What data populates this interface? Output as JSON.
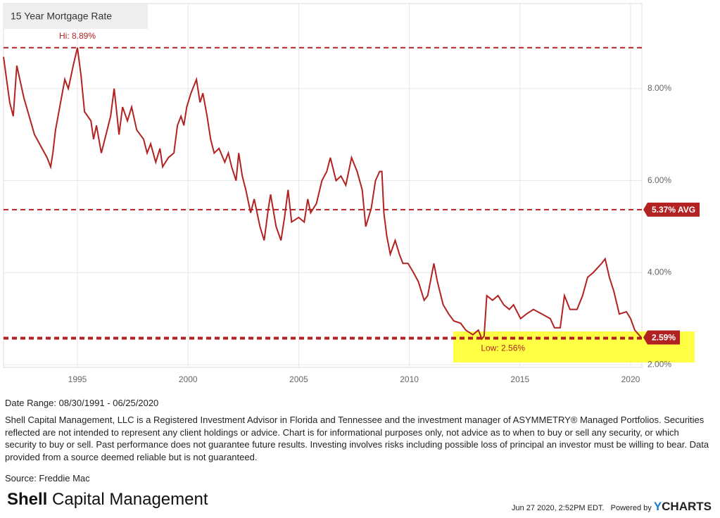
{
  "chart_data": {
    "type": "line",
    "title": "15 Year Mortgage Rate",
    "color": "#b22222",
    "x": [
      1991.66,
      1991.94,
      1992.1,
      1992.26,
      1992.58,
      1993.06,
      1993.63,
      1993.79,
      1993.89,
      1994.01,
      1994.43,
      1994.59,
      1994.81,
      1995.0,
      1995.16,
      1995.32,
      1995.61,
      1995.73,
      1995.86,
      1996.08,
      1996.24,
      1996.5,
      1996.66,
      1996.75,
      1996.88,
      1997.04,
      1997.26,
      1997.45,
      1997.68,
      1997.99,
      1998.15,
      1998.31,
      1998.54,
      1998.73,
      1998.85,
      1999.11,
      1999.36,
      1999.52,
      1999.68,
      1999.81,
      1999.94,
      2000.13,
      2000.38,
      2000.54,
      2000.67,
      2000.86,
      2001.02,
      2001.18,
      2001.4,
      2001.66,
      2001.82,
      2001.97,
      2002.17,
      2002.29,
      2002.45,
      2002.61,
      2002.83,
      2002.99,
      2003.25,
      2003.44,
      2003.63,
      2003.73,
      2003.98,
      2004.2,
      2004.36,
      2004.52,
      2004.68,
      2005.0,
      2005.25,
      2005.41,
      2005.54,
      2005.8,
      2006.05,
      2006.27,
      2006.43,
      2006.69,
      2006.91,
      2007.13,
      2007.39,
      2007.64,
      2007.87,
      2008.03,
      2008.28,
      2008.47,
      2008.66,
      2008.76,
      2008.85,
      2008.98,
      2009.14,
      2009.36,
      2009.55,
      2009.71,
      2009.94,
      2010.19,
      2010.41,
      2010.67,
      2010.83,
      2011.11,
      2011.27,
      2011.53,
      2011.78,
      2012.01,
      2012.32,
      2012.55,
      2012.87,
      2013.12,
      2013.28,
      2013.38,
      2013.5,
      2013.76,
      2014.01,
      2014.27,
      2014.52,
      2014.71,
      2015.03,
      2015.29,
      2015.61,
      2015.99,
      2016.37,
      2016.56,
      2016.82,
      2017.01,
      2017.26,
      2017.58,
      2017.83,
      2018.06,
      2018.31,
      2018.69,
      2018.85,
      2019.04,
      2019.24,
      2019.49,
      2019.81,
      2020.0,
      2020.19,
      2020.48
    ],
    "values": [
      8.69,
      7.7,
      7.4,
      8.5,
      7.8,
      7.0,
      6.5,
      6.3,
      6.6,
      7.1,
      8.2,
      8.0,
      8.5,
      8.89,
      8.3,
      7.5,
      7.3,
      6.9,
      7.2,
      6.6,
      6.9,
      7.4,
      8.0,
      7.6,
      7.0,
      7.6,
      7.3,
      7.6,
      7.1,
      6.9,
      6.6,
      6.8,
      6.4,
      6.7,
      6.3,
      6.5,
      6.6,
      7.2,
      7.4,
      7.2,
      7.6,
      7.9,
      8.2,
      7.7,
      7.9,
      7.4,
      6.9,
      6.6,
      6.7,
      6.4,
      6.6,
      6.3,
      6.0,
      6.6,
      6.1,
      5.8,
      5.3,
      5.6,
      5.0,
      4.7,
      5.4,
      5.7,
      5.0,
      4.7,
      5.2,
      5.8,
      5.1,
      5.2,
      5.1,
      5.6,
      5.3,
      5.5,
      6.0,
      6.2,
      6.5,
      6.0,
      6.1,
      5.9,
      6.5,
      6.2,
      5.8,
      5.0,
      5.4,
      6.0,
      6.2,
      6.2,
      5.3,
      4.8,
      4.4,
      4.7,
      4.4,
      4.2,
      4.2,
      4.0,
      3.8,
      3.4,
      3.5,
      4.2,
      3.8,
      3.3,
      3.1,
      2.95,
      2.9,
      2.75,
      2.65,
      2.75,
      2.56,
      2.62,
      3.5,
      3.4,
      3.5,
      3.3,
      3.2,
      3.3,
      3.0,
      3.1,
      3.2,
      3.1,
      3.0,
      2.8,
      2.8,
      3.5,
      3.2,
      3.2,
      3.5,
      3.9,
      4.0,
      4.2,
      4.3,
      3.9,
      3.6,
      3.1,
      3.15,
      3.0,
      2.75,
      2.59
    ],
    "xlim": [
      1991.66,
      2020.51
    ],
    "xticks": [
      1995,
      2000,
      2005,
      2010,
      2015,
      2020
    ],
    "ylim": [
      1.94,
      9.85
    ],
    "yticks": [
      {
        "value": 2,
        "label": "2.00%"
      },
      {
        "value": 4,
        "label": "4.00%"
      },
      {
        "value": 6,
        "label": "6.00%"
      },
      {
        "value": 8,
        "label": "8.00%"
      }
    ],
    "grid": true,
    "annotations": [
      {
        "value": 8.89,
        "label": "Hi: 8.89%"
      },
      {
        "value": 2.56,
        "label": "Low: 2.56%"
      }
    ],
    "badges": [
      {
        "value": 5.37,
        "label": "5.37% AVG"
      },
      {
        "value": 2.59,
        "label": "2.59%"
      }
    ]
  },
  "footer": {
    "date_range": "Date Range: 08/30/1991 - 06/25/2020",
    "disclaimer": "Shell Capital Management, LLC is a Registered Investment Advisor in Florida and Tennessee and the investment manager of ASYMMETRY® Managed Portfolios. Securities reflected are not intended to represent any client holdings or advice. Chart is for informational purposes only, not advice as to when to buy or sell any security, or which security to buy or sell. Past performance does not guarantee future results. Investing involves risks including possible loss of principal an investor must be willing to bear. Data provided from a source deemed reliable but is not guaranteed.",
    "source": "Source: Freddie Mac",
    "logo_bold": "Shell",
    "logo_rest": "Capital Management",
    "timestamp": "Jun 27 2020, 2:52PM EDT.",
    "powered_by": "Powered by",
    "brand_y": "Y",
    "brand_rest": "CHARTS"
  }
}
